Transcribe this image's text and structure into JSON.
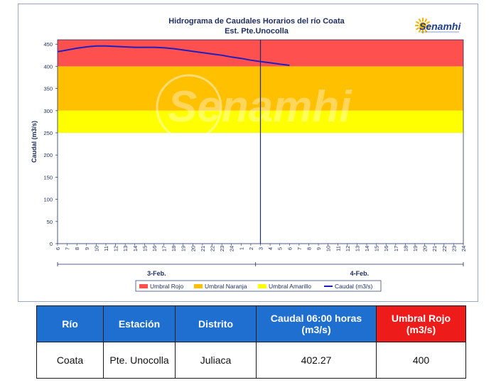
{
  "chart_data": {
    "type": "line",
    "title": "Hidrograma de Caudales Horarios del río Coata",
    "subtitle": "Est. Pte.Unocolla",
    "ylabel": "Caudal  (m3/s)",
    "ylim": [
      0,
      460
    ],
    "yticks": [
      0,
      50,
      100,
      150,
      200,
      250,
      300,
      350,
      400,
      450
    ],
    "x_hours_start": 6,
    "x_tick_labels": [
      "6",
      "7",
      "8",
      "9",
      "10",
      "11",
      "12",
      "13",
      "14",
      "15",
      "16",
      "17",
      "18",
      "19",
      "20",
      "21",
      "22",
      "23",
      "24",
      "1",
      "2",
      "3",
      "4",
      "5",
      "6",
      "7",
      "8",
      "9",
      "10",
      "11",
      "12",
      "13",
      "14",
      "15",
      "16",
      "17",
      "18",
      "19",
      "20",
      "21",
      "22",
      "23",
      "24"
    ],
    "date_groups": [
      {
        "label": "3-Feb.",
        "from_hour": 6,
        "to_hour": 24
      },
      {
        "label": "4-Feb.",
        "from_hour": 1,
        "to_hour": 24
      }
    ],
    "current_time_marker": "3",
    "thresholds": [
      {
        "name": "Umbral Rojo",
        "from": 400,
        "to": 460,
        "color": "#ff5050"
      },
      {
        "name": "Umbral Naranja",
        "from": 300,
        "to": 400,
        "color": "#ffc000"
      },
      {
        "name": "Umbral Amarillo",
        "from": 250,
        "to": 300,
        "color": "#ffff00"
      }
    ],
    "series": [
      {
        "name": "Caudal (m3/s)",
        "color": "#1f1fbf",
        "x": [
          6,
          7,
          8,
          9,
          10,
          11,
          12,
          13,
          14,
          15,
          16,
          17,
          18,
          19,
          20,
          21,
          22,
          23,
          24,
          25,
          26,
          27,
          28,
          29,
          30
        ],
        "values": [
          433,
          437,
          441,
          444,
          446,
          446,
          445,
          444,
          443,
          443,
          443,
          442,
          440,
          437,
          434,
          431,
          428,
          425,
          421,
          418,
          414,
          411,
          408,
          405,
          402.27
        ]
      }
    ],
    "legend": [
      "Umbral Rojo",
      "Umbral Naranja",
      "Umbral Amarillo",
      "Caudal (m3/s)"
    ],
    "legend_placement": "bottom",
    "watermark": "Senamhi",
    "logo": "Senamhi"
  },
  "table": {
    "headers": [
      "Río",
      "Estación",
      "Distrito",
      "Caudal 06:00 horas (m3/s)",
      "Umbral Rojo (m3/s)"
    ],
    "row": [
      "Coata",
      "Pte. Unocolla",
      "Juliaca",
      "402.27",
      "400"
    ]
  }
}
